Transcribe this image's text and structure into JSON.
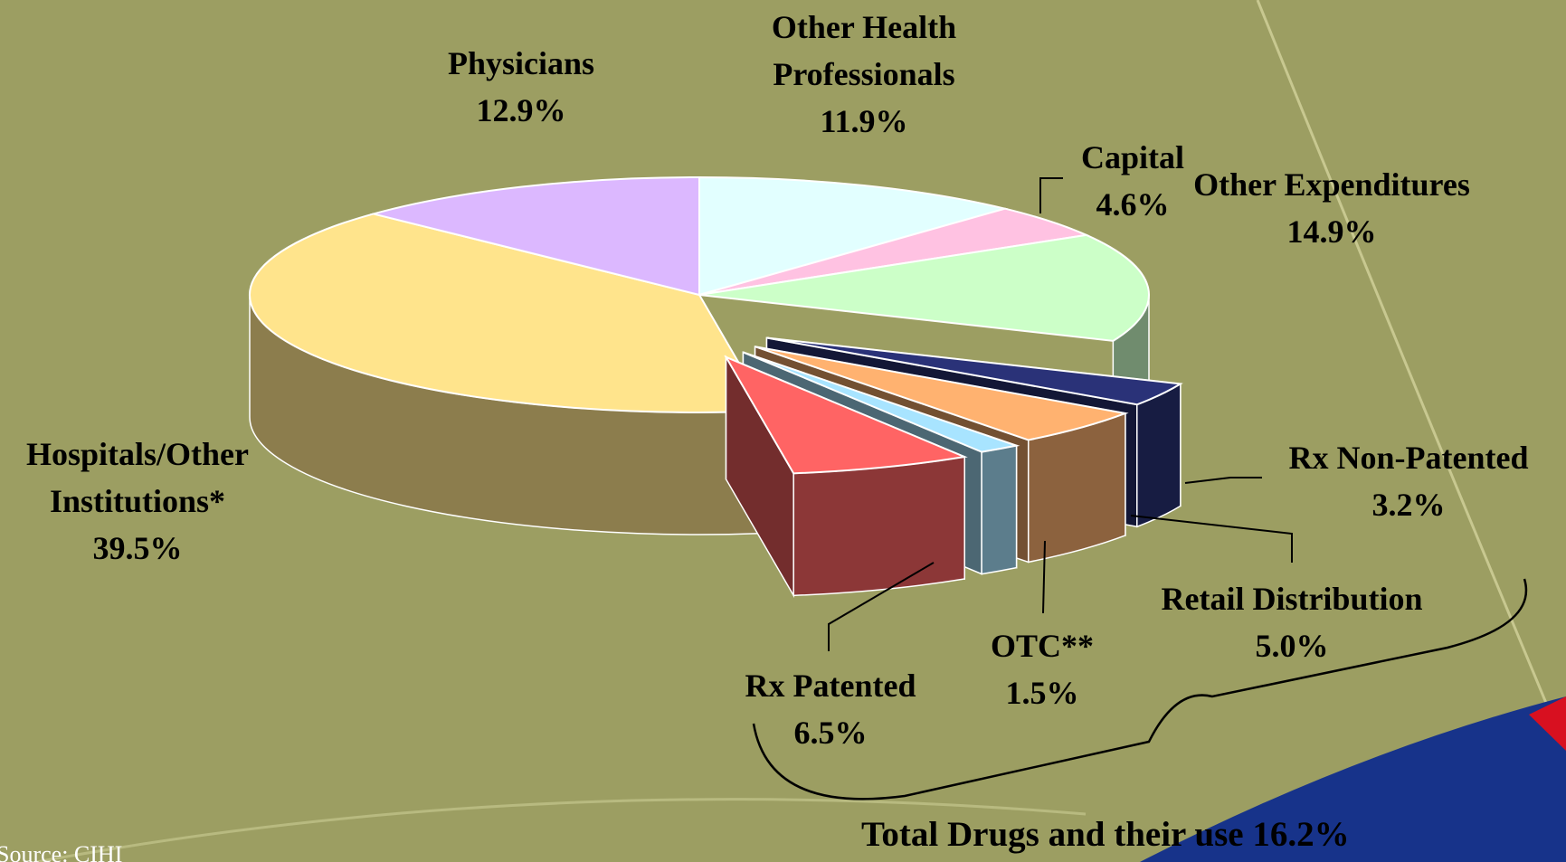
{
  "chart_data": {
    "type": "pie3d",
    "categories": [
      "Other Health Professionals",
      "Capital",
      "Other Expenditures",
      "Rx Non-Patented",
      "Retail Distribution",
      "OTC**",
      "Rx Patented",
      "Hospitals/Other Institutions*",
      "Physicians"
    ],
    "values": [
      11.9,
      4.6,
      14.9,
      3.2,
      5.0,
      1.5,
      6.5,
      39.5,
      12.9
    ],
    "value_labels": [
      "11.9%",
      "4.6%",
      "14.9%",
      "3.2%",
      "5.0%",
      "1.5%",
      "6.5%",
      "39.5%",
      "12.9%"
    ],
    "colors": [
      "#e2ffff",
      "#ffc2e2",
      "#ccffc8",
      "#2a3278",
      "#ffb270",
      "#a8e4ff",
      "#ff6464",
      "#ffe48c",
      "#dcb8ff"
    ],
    "exploded": [
      false,
      false,
      false,
      true,
      true,
      true,
      true,
      false,
      false
    ],
    "annotations": [
      "Total Drugs and their use 16.2%",
      "Source:  CIHI"
    ]
  }
}
